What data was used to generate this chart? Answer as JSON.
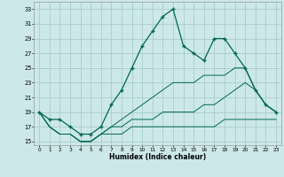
{
  "title": "",
  "xlabel": "Humidex (Indice chaleur)",
  "bg_color": "#cce8e8",
  "grid_color": "#aacccc",
  "line_color": "#006655",
  "xlim": [
    -0.5,
    23.5
  ],
  "ylim": [
    14.5,
    34.0
  ],
  "yticks": [
    15,
    17,
    19,
    21,
    23,
    25,
    27,
    29,
    31,
    33
  ],
  "xticks": [
    0,
    1,
    2,
    3,
    4,
    5,
    6,
    7,
    8,
    9,
    10,
    11,
    12,
    13,
    14,
    15,
    16,
    17,
    18,
    19,
    20,
    21,
    22,
    23
  ],
  "main_x": [
    0,
    1,
    2,
    3,
    4,
    5,
    6,
    7,
    8,
    9,
    10,
    11,
    12,
    13,
    14,
    15,
    16,
    17,
    18,
    19,
    20,
    21,
    22,
    23
  ],
  "main_y": [
    19,
    18,
    18,
    17,
    16,
    16,
    17,
    20,
    22,
    25,
    28,
    30,
    32,
    33,
    28,
    27,
    26,
    29,
    29,
    27,
    25,
    22,
    20,
    19
  ],
  "line2_x": [
    0,
    1,
    2,
    3,
    4,
    5,
    6,
    7,
    8,
    9,
    10,
    11,
    12,
    13,
    14,
    15,
    16,
    17,
    18,
    19,
    20,
    21,
    22,
    23
  ],
  "line2_y": [
    19,
    17,
    16,
    16,
    15,
    15,
    16,
    17,
    18,
    19,
    20,
    21,
    22,
    23,
    23,
    23,
    24,
    24,
    24,
    25,
    25,
    22,
    20,
    19
  ],
  "line3_x": [
    0,
    1,
    2,
    3,
    4,
    5,
    6,
    7,
    8,
    9,
    10,
    11,
    12,
    13,
    14,
    15,
    16,
    17,
    18,
    19,
    20,
    21,
    22,
    23
  ],
  "line3_y": [
    19,
    17,
    16,
    16,
    15,
    15,
    16,
    17,
    17,
    18,
    18,
    18,
    19,
    19,
    19,
    19,
    20,
    20,
    21,
    22,
    23,
    22,
    20,
    19
  ],
  "line4_x": [
    0,
    1,
    2,
    3,
    4,
    5,
    6,
    7,
    8,
    9,
    10,
    11,
    12,
    13,
    14,
    15,
    16,
    17,
    18,
    19,
    20,
    21,
    22,
    23
  ],
  "line4_y": [
    19,
    17,
    16,
    16,
    15,
    15,
    16,
    16,
    16,
    17,
    17,
    17,
    17,
    17,
    17,
    17,
    17,
    17,
    18,
    18,
    18,
    18,
    18,
    18
  ]
}
